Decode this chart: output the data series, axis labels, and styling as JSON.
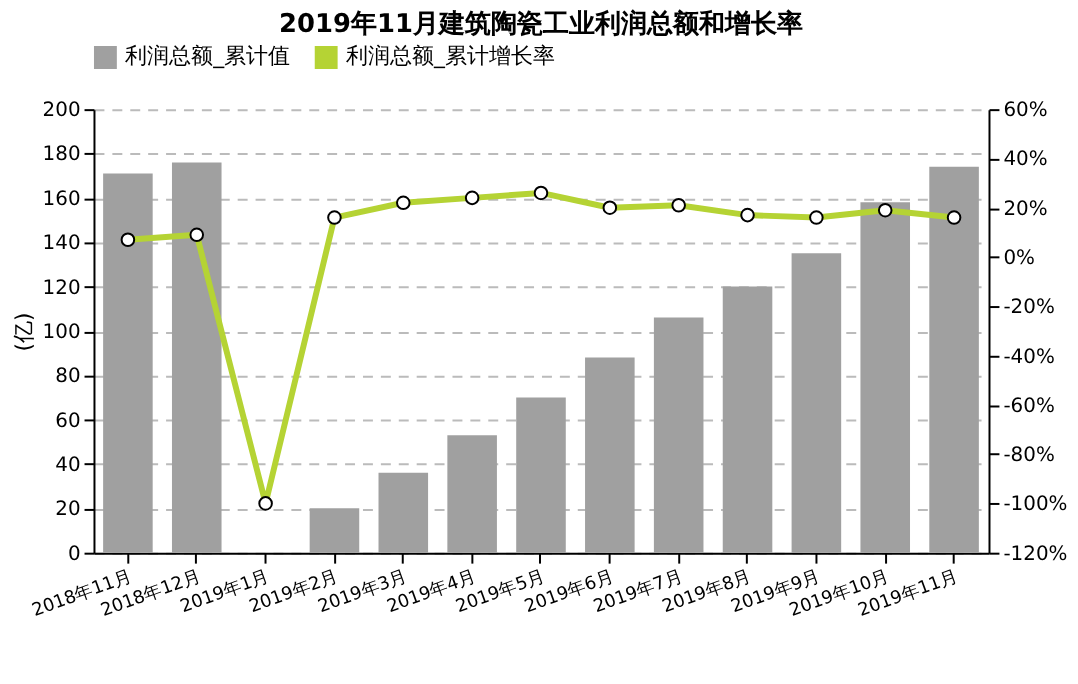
{
  "chart_data": {
    "type": "bar",
    "title": "2019年11月建筑陶瓷工业利润总额和增长率",
    "ylabel": "(亿)",
    "categories": [
      "2018年11月",
      "2018年12月",
      "2019年1月",
      "2019年2月",
      "2019年3月",
      "2019年4月",
      "2019年5月",
      "2019年6月",
      "2019年7月",
      "2019年8月",
      "2019年9月",
      "2019年10月",
      "2019年11月"
    ],
    "series": [
      {
        "name": "利润总额_累计值",
        "color": "#a0a0a0",
        "values": [
          171,
          176,
          null,
          20,
          36,
          53,
          70,
          88,
          106,
          120,
          135,
          158,
          174
        ]
      },
      {
        "name": "利润总额_累计增长率",
        "type": "line",
        "axis": "y2",
        "color": "#b5d334",
        "values": [
          7,
          9,
          -100,
          16,
          22,
          24,
          26,
          20,
          21,
          17,
          16,
          19,
          16
        ]
      }
    ],
    "ylim": [
      0,
      200
    ],
    "yticks": [
      0,
      20,
      40,
      60,
      80,
      100,
      120,
      140,
      160,
      180,
      200
    ],
    "y2lim": [
      -120,
      60
    ],
    "y2ticks": [
      {
        "value": -120,
        "label": "-120%"
      },
      {
        "value": -100,
        "label": "-100%"
      },
      {
        "value": -80,
        "label": "-80%"
      },
      {
        "value": -60,
        "label": "-60%"
      },
      {
        "value": -40,
        "label": "-40%"
      },
      {
        "value": -20,
        "label": "-20%"
      },
      {
        "value": 0,
        "label": "0%"
      },
      {
        "value": 20,
        "label": "20%"
      },
      {
        "value": 40,
        "label": "40%"
      },
      {
        "value": 60,
        "label": "60%"
      }
    ],
    "grid": "y",
    "legend": "top",
    "marker": "circle",
    "line_style": "solid"
  }
}
